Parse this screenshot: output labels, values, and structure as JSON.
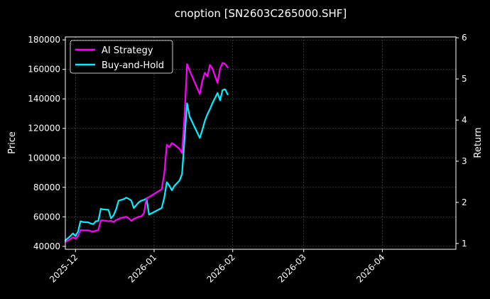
{
  "chart_data": {
    "type": "line",
    "title": "cnoption [SN2603C265000.SHF]",
    "xlabel": "",
    "ylabel": "Price",
    "ylabel_right": "Return",
    "x_tick_labels": [
      "2025-12",
      "2026-01",
      "2026-02",
      "2026-03",
      "2026-04"
    ],
    "x_tick_dates": [
      "2025-12-01",
      "2026-01-01",
      "2026-02-01",
      "2026-03-01",
      "2026-04-01"
    ],
    "xlim": [
      "2025-11-27",
      "2026-04-30"
    ],
    "ylim": [
      38000,
      182000
    ],
    "y_ticks": [
      40000,
      60000,
      80000,
      100000,
      120000,
      140000,
      160000,
      180000
    ],
    "y_tick_labels": [
      "40000",
      "60000",
      "80000",
      "100000",
      "120000",
      "140000",
      "160000",
      "180000"
    ],
    "ylim_right": [
      0.86,
      6.02
    ],
    "y_ticks_right": [
      1,
      2,
      3,
      4,
      5,
      6
    ],
    "y_tick_labels_right": [
      "1",
      "2",
      "3",
      "4",
      "5",
      "6"
    ],
    "grid": true,
    "legend_position": "top-left",
    "series": [
      {
        "name": "AI Strategy",
        "color": "#ff00ff",
        "axis": "right",
        "x": [
          "2025-11-27",
          "2025-11-28",
          "2025-11-29",
          "2025-11-30",
          "2025-12-01",
          "2025-12-02",
          "2025-12-03",
          "2025-12-04",
          "2025-12-06",
          "2025-12-07",
          "2025-12-08",
          "2025-12-09",
          "2025-12-10",
          "2025-12-11",
          "2025-12-12",
          "2025-12-14",
          "2025-12-15",
          "2025-12-16",
          "2025-12-17",
          "2025-12-18",
          "2025-12-20",
          "2025-12-21",
          "2025-12-22",
          "2025-12-23",
          "2025-12-24",
          "2025-12-26",
          "2025-12-27",
          "2025-12-28",
          "2025-12-29",
          "2025-12-30",
          "2026-01-04",
          "2026-01-05",
          "2026-01-06",
          "2026-01-07",
          "2026-01-08",
          "2026-01-09",
          "2026-01-11",
          "2026-01-12",
          "2026-01-13",
          "2026-01-14",
          "2026-01-15",
          "2026-01-19",
          "2026-01-20",
          "2026-01-21",
          "2026-01-22",
          "2026-01-23",
          "2026-01-24",
          "2026-01-26",
          "2026-01-27",
          "2026-01-28",
          "2026-01-29",
          "2026-01-30"
        ],
        "y": [
          1.04,
          1.07,
          1.11,
          1.15,
          1.12,
          1.18,
          1.33,
          1.32,
          1.32,
          1.3,
          1.29,
          1.31,
          1.33,
          1.56,
          1.56,
          1.54,
          1.55,
          1.52,
          1.57,
          1.6,
          1.64,
          1.65,
          1.61,
          1.55,
          1.6,
          1.65,
          1.66,
          1.74,
          2.1,
          2.13,
          2.32,
          2.7,
          3.4,
          3.34,
          3.44,
          3.4,
          3.3,
          3.2,
          4.12,
          5.36,
          5.2,
          4.63,
          4.95,
          5.15,
          5.06,
          5.34,
          5.25,
          4.9,
          5.25,
          5.39,
          5.36,
          5.28
        ]
      },
      {
        "name": "Buy-and-Hold",
        "color": "#00f0ff",
        "axis": "left",
        "x": [
          "2025-11-27",
          "2025-11-28",
          "2025-11-29",
          "2025-11-30",
          "2025-12-01",
          "2025-12-02",
          "2025-12-03",
          "2025-12-04",
          "2025-12-06",
          "2025-12-07",
          "2025-12-08",
          "2025-12-09",
          "2025-12-10",
          "2025-12-11",
          "2025-12-12",
          "2025-12-14",
          "2025-12-15",
          "2025-12-16",
          "2025-12-17",
          "2025-12-18",
          "2025-12-20",
          "2025-12-21",
          "2025-12-22",
          "2025-12-23",
          "2025-12-24",
          "2025-12-26",
          "2025-12-27",
          "2025-12-28",
          "2025-12-29",
          "2025-12-30",
          "2026-01-04",
          "2026-01-05",
          "2026-01-06",
          "2026-01-07",
          "2026-01-08",
          "2026-01-09",
          "2026-01-11",
          "2026-01-12",
          "2026-01-13",
          "2026-01-14",
          "2026-01-15",
          "2026-01-19",
          "2026-01-20",
          "2026-01-21",
          "2026-01-22",
          "2026-01-23",
          "2026-01-24",
          "2026-01-26",
          "2026-01-27",
          "2026-01-28",
          "2026-01-29",
          "2026-01-30"
        ],
        "y": [
          44000,
          45500,
          47000,
          48800,
          47000,
          50000,
          57000,
          56500,
          56300,
          55500,
          55000,
          57000,
          57200,
          65500,
          65000,
          64800,
          59000,
          61000,
          65000,
          71000,
          72000,
          73000,
          72200,
          71000,
          66000,
          70000,
          71000,
          71500,
          72500,
          61500,
          66000,
          73000,
          83500,
          81200,
          78000,
          81000,
          84500,
          89000,
          113000,
          137000,
          128000,
          113500,
          119000,
          125000,
          129500,
          133000,
          137000,
          144000,
          139000,
          146000,
          146500,
          143000
        ]
      }
    ]
  },
  "legend": {
    "items": [
      {
        "label": "AI Strategy",
        "color": "#ff00ff"
      },
      {
        "label": "Buy-and-Hold",
        "color": "#00f0ff"
      }
    ]
  }
}
